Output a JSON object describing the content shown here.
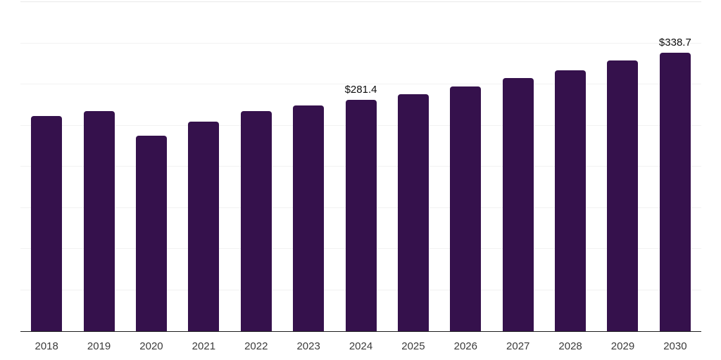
{
  "chart_style": {
    "bar_color": "#35114C",
    "axis_color": "#1f1f1f",
    "gridline_color": "#f2f2f2",
    "top_gridline_color": "#e9e9e9",
    "value_label_color": "#0d0d0d",
    "tick_label_color": "#3b3b3b",
    "background": "#ffffff"
  },
  "chart_data": {
    "type": "bar",
    "title": "",
    "xlabel": "",
    "ylabel": "",
    "categories": [
      "2018",
      "2019",
      "2020",
      "2021",
      "2022",
      "2023",
      "2024",
      "2025",
      "2026",
      "2027",
      "2028",
      "2029",
      "2030"
    ],
    "values": [
      261.7,
      267.9,
      237.2,
      254.6,
      267.3,
      274.4,
      281.4,
      288.4,
      297.8,
      307.4,
      317.2,
      328.8,
      338.7
    ],
    "bar_labels": [
      null,
      null,
      null,
      null,
      null,
      null,
      "$281.4",
      null,
      null,
      null,
      null,
      null,
      "$338.7"
    ],
    "ylim": [
      0,
      400
    ],
    "grid_step": 50,
    "grid": "on",
    "legend": "none",
    "value_prefix": "$",
    "notes": "Only 2024 ($281.4) and 2030 ($338.7) carry data labels; other values estimated from gridlines (50 units apart)."
  }
}
